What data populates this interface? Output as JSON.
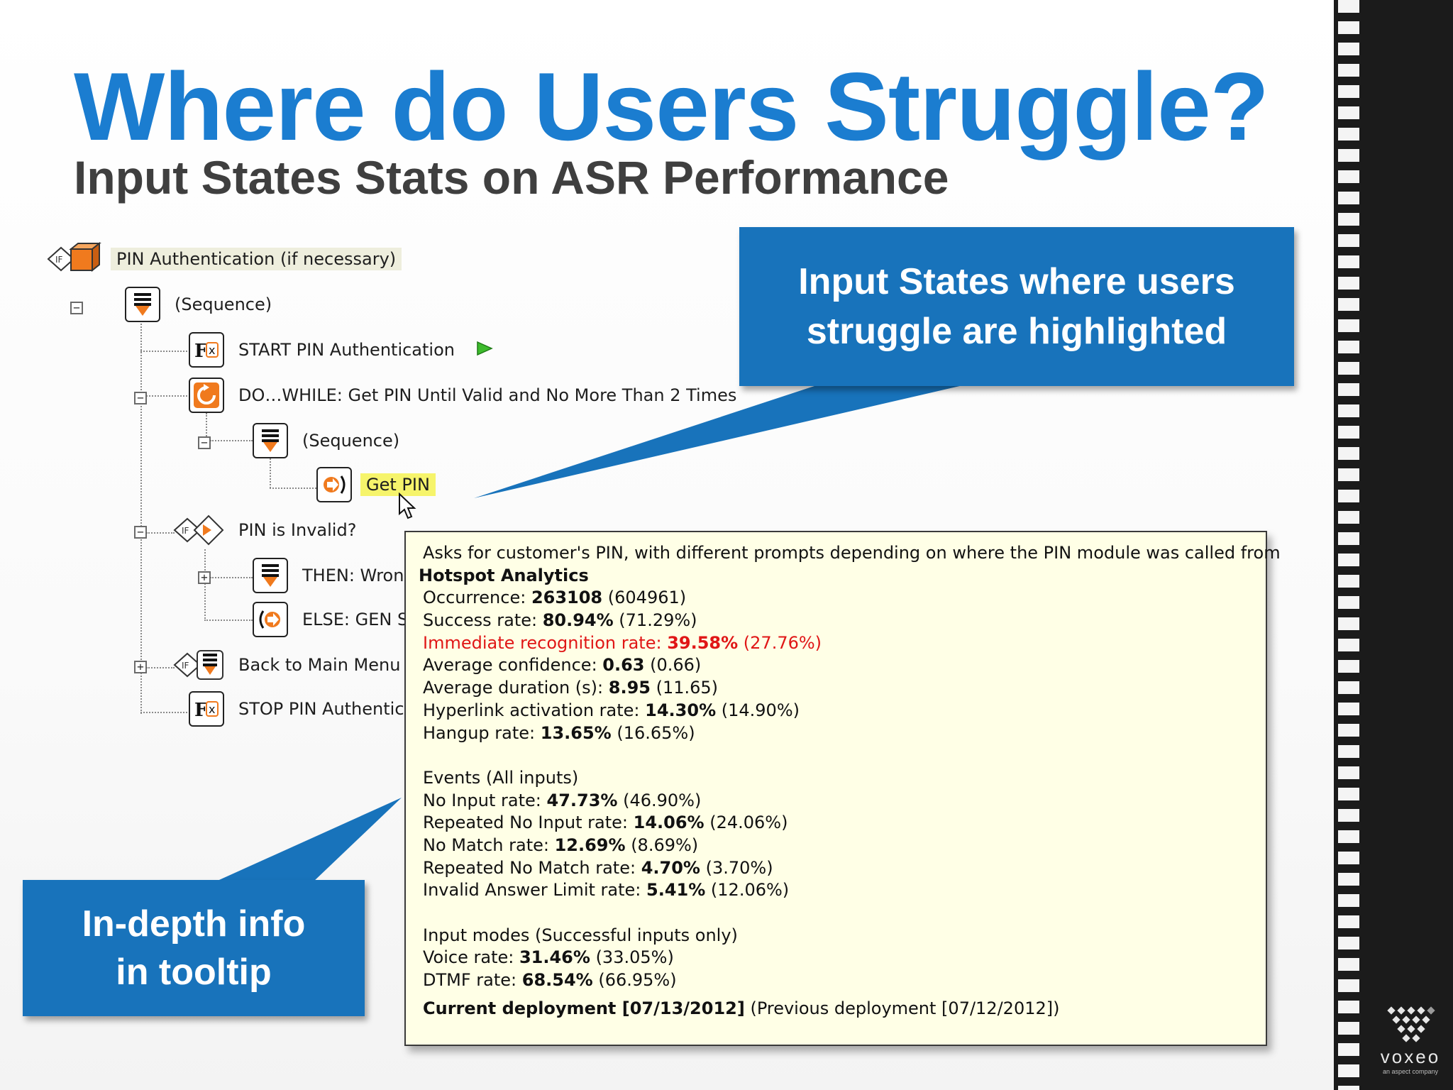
{
  "slide": {
    "title": "Where do Users Struggle?",
    "subtitle": "Input States Stats on ASR Performance"
  },
  "tree": {
    "root": "PIN Authentication (if necessary)",
    "sequence_1": "(Sequence)",
    "start": "START PIN Authentication",
    "do_while": "DO…WHILE: Get PIN Until Valid and No More Than 2 Times",
    "sequence_2": "(Sequence)",
    "get_pin": "Get PIN",
    "pin_invalid": "PIN is Invalid?",
    "then": "THEN: Wron",
    "else": "ELSE: GEN S",
    "back_main": "Back to Main Menu a",
    "stop": "STOP PIN Authentic"
  },
  "callouts": {
    "top": [
      "Input States where users",
      "struggle are highlighted"
    ],
    "bottom": [
      "In-depth info",
      "in tooltip"
    ]
  },
  "tooltip": {
    "description": "Asks for customer's PIN, with different prompts depending on where the PIN module was called from",
    "heading": "Hotspot Analytics",
    "stats": [
      {
        "label": "Occurrence: ",
        "value": "263108",
        "prev": " (604961)",
        "highlight": false
      },
      {
        "label": "Success rate: ",
        "value": "80.94%",
        "prev": " (71.29%)",
        "highlight": false
      },
      {
        "label": "Immediate recognition rate: ",
        "value": "39.58%",
        "prev": " (27.76%)",
        "highlight": true
      },
      {
        "label": "Average confidence: ",
        "value": "0.63",
        "prev": " (0.66)",
        "highlight": false
      },
      {
        "label": "Average duration (s): ",
        "value": "8.95",
        "prev": " (11.65)",
        "highlight": false
      },
      {
        "label": "Hyperlink activation rate: ",
        "value": "14.30%",
        "prev": " (14.90%)",
        "highlight": false
      },
      {
        "label": "Hangup rate: ",
        "value": "13.65%",
        "prev": " (16.65%)",
        "highlight": false
      }
    ],
    "events_heading": "Events (All inputs)",
    "events": [
      {
        "label": "No Input rate: ",
        "value": "47.73%",
        "prev": " (46.90%)"
      },
      {
        "label": "Repeated No Input rate: ",
        "value": "14.06%",
        "prev": " (24.06%)"
      },
      {
        "label": "No Match rate: ",
        "value": "12.69%",
        "prev": " (8.69%)"
      },
      {
        "label": "Repeated No Match rate: ",
        "value": "4.70%",
        "prev": " (3.70%)"
      },
      {
        "label": "Invalid Answer Limit rate: ",
        "value": "5.41%",
        "prev": " (12.06%)"
      }
    ],
    "modes_heading": "Input modes (Successful inputs only)",
    "modes": [
      {
        "label": "Voice rate: ",
        "value": "31.46%",
        "prev": " (33.05%)"
      },
      {
        "label": "DTMF rate: ",
        "value": "68.54%",
        "prev": " (66.95%)"
      }
    ],
    "footer_current": "Current deployment [07/13/2012]",
    "footer_previous": " (Previous deployment [07/12/2012])"
  },
  "brand": {
    "name": "voxeo",
    "tagline": "an aspect company"
  },
  "colors": {
    "title": "#1b7dd0",
    "callout": "#1873bb",
    "tooltip_bg": "#ffffe6",
    "highlight_bg": "#f6f46b",
    "root_bg": "#eeeedd",
    "alert_text": "#e01616",
    "icon_orange": "#f07a1e"
  },
  "icons": [
    "if-cube-icon",
    "sequence-icon",
    "function-icon",
    "loop-icon",
    "input-icon",
    "if-decision-icon",
    "play-icon",
    "cursor-icon",
    "output-icon"
  ]
}
